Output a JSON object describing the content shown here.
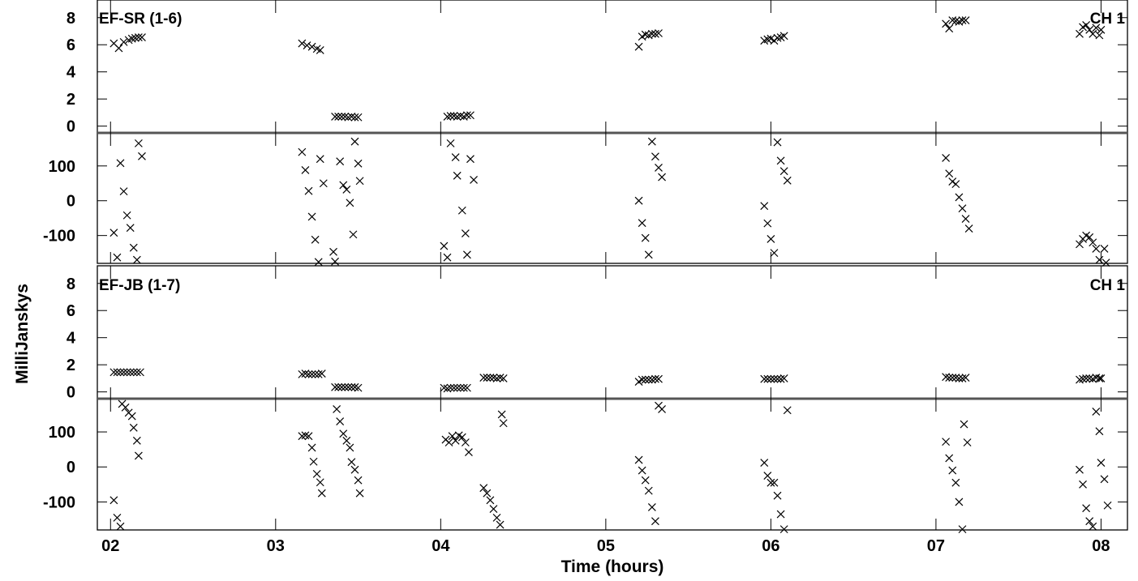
{
  "chart_data": {
    "type": "scatter",
    "xlabel": "Time (hours)",
    "ylabel": "MilliJanskys",
    "x_ticks": [
      "02",
      "03",
      "04",
      "05",
      "06",
      "07",
      "08"
    ],
    "xlim": [
      1.92,
      8.16
    ],
    "panels": [
      {
        "baseline_label": "EF-SR (1-6)",
        "channel_label": "CH 1",
        "amplitude": {
          "ylim": [
            -0.5,
            9.3
          ],
          "y_ticks": [
            8,
            6,
            4,
            2,
            0
          ],
          "points": [
            [
              2.02,
              6.1
            ],
            [
              2.05,
              5.75
            ],
            [
              2.08,
              6.2
            ],
            [
              2.11,
              6.35
            ],
            [
              2.13,
              6.45
            ],
            [
              2.15,
              6.5
            ],
            [
              2.17,
              6.55
            ],
            [
              2.19,
              6.55
            ],
            [
              3.16,
              6.1
            ],
            [
              3.19,
              5.95
            ],
            [
              3.22,
              5.85
            ],
            [
              3.25,
              5.7
            ],
            [
              3.27,
              5.6
            ],
            [
              3.36,
              0.7
            ],
            [
              3.38,
              0.7
            ],
            [
              3.4,
              0.7
            ],
            [
              3.42,
              0.7
            ],
            [
              3.44,
              0.65
            ],
            [
              3.46,
              0.7
            ],
            [
              3.48,
              0.65
            ],
            [
              3.5,
              0.65
            ],
            [
              4.04,
              0.7
            ],
            [
              4.06,
              0.75
            ],
            [
              4.08,
              0.75
            ],
            [
              4.1,
              0.7
            ],
            [
              4.12,
              0.75
            ],
            [
              4.14,
              0.7
            ],
            [
              4.16,
              0.8
            ],
            [
              4.18,
              0.8
            ],
            [
              5.2,
              5.85
            ],
            [
              5.22,
              6.6
            ],
            [
              5.24,
              6.75
            ],
            [
              5.26,
              6.7
            ],
            [
              5.28,
              6.8
            ],
            [
              5.3,
              6.8
            ],
            [
              5.32,
              6.85
            ],
            [
              5.96,
              6.3
            ],
            [
              5.98,
              6.4
            ],
            [
              6.0,
              6.45
            ],
            [
              6.02,
              6.3
            ],
            [
              6.04,
              6.5
            ],
            [
              6.06,
              6.55
            ],
            [
              6.08,
              6.65
            ],
            [
              7.06,
              7.55
            ],
            [
              7.08,
              7.2
            ],
            [
              7.1,
              7.8
            ],
            [
              7.12,
              7.75
            ],
            [
              7.14,
              7.7
            ],
            [
              7.16,
              7.8
            ],
            [
              7.18,
              7.8
            ],
            [
              7.87,
              6.8
            ],
            [
              7.89,
              7.3
            ],
            [
              7.91,
              7.45
            ],
            [
              7.93,
              7.1
            ],
            [
              7.95,
              6.8
            ],
            [
              7.97,
              7.25
            ],
            [
              7.99,
              6.7
            ],
            [
              8.0,
              7.1
            ]
          ]
        },
        "phase": {
          "ylim": [
            -180,
            195
          ],
          "y_ticks": [
            100,
            0,
            -100
          ],
          "points": [
            [
              2.02,
              -92
            ],
            [
              2.04,
              -163
            ],
            [
              2.06,
              108
            ],
            [
              2.08,
              27
            ],
            [
              2.1,
              -42
            ],
            [
              2.12,
              -78
            ],
            [
              2.14,
              -135
            ],
            [
              2.16,
              -170
            ],
            [
              2.17,
              165
            ],
            [
              2.19,
              128
            ],
            [
              3.16,
              140
            ],
            [
              3.18,
              88
            ],
            [
              3.2,
              28
            ],
            [
              3.22,
              -46
            ],
            [
              3.24,
              -112
            ],
            [
              3.26,
              -176
            ],
            [
              3.27,
              120
            ],
            [
              3.29,
              50
            ],
            [
              3.35,
              -147
            ],
            [
              3.36,
              -175
            ],
            [
              3.39,
              113
            ],
            [
              3.41,
              45
            ],
            [
              3.43,
              32
            ],
            [
              3.45,
              -6
            ],
            [
              3.47,
              -97
            ],
            [
              3.48,
              170
            ],
            [
              3.5,
              107
            ],
            [
              3.51,
              57
            ],
            [
              4.02,
              -130
            ],
            [
              4.04,
              -163
            ],
            [
              4.06,
              165
            ],
            [
              4.09,
              125
            ],
            [
              4.1,
              72
            ],
            [
              4.13,
              -28
            ],
            [
              4.15,
              -94
            ],
            [
              4.16,
              -155
            ],
            [
              4.18,
              120
            ],
            [
              4.2,
              60
            ],
            [
              5.2,
              0
            ],
            [
              5.22,
              -64
            ],
            [
              5.24,
              -107
            ],
            [
              5.26,
              -155
            ],
            [
              5.28,
              170
            ],
            [
              5.3,
              127
            ],
            [
              5.32,
              95
            ],
            [
              5.34,
              68
            ],
            [
              5.96,
              -15
            ],
            [
              5.98,
              -65
            ],
            [
              6.0,
              -110
            ],
            [
              6.02,
              -150
            ],
            [
              6.04,
              168
            ],
            [
              6.06,
              115
            ],
            [
              6.08,
              85
            ],
            [
              6.1,
              58
            ],
            [
              7.06,
              123
            ],
            [
              7.08,
              78
            ],
            [
              7.1,
              55
            ],
            [
              7.12,
              48
            ],
            [
              7.14,
              10
            ],
            [
              7.16,
              -22
            ],
            [
              7.18,
              -52
            ],
            [
              7.2,
              -80
            ],
            [
              7.87,
              -125
            ],
            [
              7.89,
              -110
            ],
            [
              7.91,
              -100
            ],
            [
              7.93,
              -105
            ],
            [
              7.95,
              -120
            ],
            [
              7.97,
              -138
            ],
            [
              7.99,
              -170
            ],
            [
              8.02,
              -138
            ],
            [
              8.03,
              -178
            ]
          ]
        }
      },
      {
        "baseline_label": "EF-JB (1-7)",
        "channel_label": "CH 1",
        "amplitude": {
          "ylim": [
            -0.5,
            9.3
          ],
          "y_ticks": [
            8,
            6,
            4,
            2,
            0
          ],
          "points": [
            [
              2.02,
              1.45
            ],
            [
              2.04,
              1.45
            ],
            [
              2.06,
              1.45
            ],
            [
              2.08,
              1.45
            ],
            [
              2.1,
              1.45
            ],
            [
              2.12,
              1.45
            ],
            [
              2.14,
              1.45
            ],
            [
              2.16,
              1.45
            ],
            [
              2.18,
              1.45
            ],
            [
              3.16,
              1.3
            ],
            [
              3.18,
              1.35
            ],
            [
              3.2,
              1.3
            ],
            [
              3.22,
              1.3
            ],
            [
              3.24,
              1.3
            ],
            [
              3.26,
              1.3
            ],
            [
              3.28,
              1.35
            ],
            [
              3.36,
              0.35
            ],
            [
              3.38,
              0.35
            ],
            [
              3.4,
              0.35
            ],
            [
              3.42,
              0.35
            ],
            [
              3.44,
              0.35
            ],
            [
              3.46,
              0.35
            ],
            [
              3.48,
              0.35
            ],
            [
              3.5,
              0.3
            ],
            [
              4.02,
              0.3
            ],
            [
              4.04,
              0.25
            ],
            [
              4.06,
              0.3
            ],
            [
              4.08,
              0.3
            ],
            [
              4.1,
              0.3
            ],
            [
              4.12,
              0.3
            ],
            [
              4.14,
              0.3
            ],
            [
              4.16,
              0.3
            ],
            [
              4.26,
              1.05
            ],
            [
              4.28,
              1.05
            ],
            [
              4.3,
              1.05
            ],
            [
              4.32,
              1.05
            ],
            [
              4.34,
              1.0
            ],
            [
              4.36,
              1.05
            ],
            [
              4.38,
              1.0
            ],
            [
              5.2,
              0.75
            ],
            [
              5.22,
              0.9
            ],
            [
              5.24,
              0.9
            ],
            [
              5.26,
              0.9
            ],
            [
              5.28,
              0.9
            ],
            [
              5.3,
              0.95
            ],
            [
              5.32,
              0.95
            ],
            [
              5.96,
              0.95
            ],
            [
              5.98,
              0.95
            ],
            [
              6.0,
              0.95
            ],
            [
              6.02,
              0.95
            ],
            [
              6.04,
              0.95
            ],
            [
              6.06,
              0.95
            ],
            [
              6.08,
              1.0
            ],
            [
              7.06,
              1.1
            ],
            [
              7.08,
              1.05
            ],
            [
              7.1,
              1.05
            ],
            [
              7.12,
              1.05
            ],
            [
              7.14,
              1.0
            ],
            [
              7.16,
              1.0
            ],
            [
              7.18,
              1.05
            ],
            [
              7.87,
              0.9
            ],
            [
              7.89,
              0.95
            ],
            [
              7.91,
              1.0
            ],
            [
              7.93,
              1.0
            ],
            [
              7.95,
              0.95
            ],
            [
              7.97,
              1.05
            ],
            [
              7.99,
              1.0
            ],
            [
              8.0,
              1.0
            ]
          ]
        },
        "phase": {
          "ylim": [
            -180,
            195
          ],
          "y_ticks": [
            100,
            0,
            -100
          ],
          "points": [
            [
              2.02,
              -95
            ],
            [
              2.04,
              -145
            ],
            [
              2.06,
              -170
            ],
            [
              2.07,
              180
            ],
            [
              2.09,
              170
            ],
            [
              2.11,
              155
            ],
            [
              2.13,
              145
            ],
            [
              2.14,
              112
            ],
            [
              2.16,
              75
            ],
            [
              2.17,
              32
            ],
            [
              3.16,
              88
            ],
            [
              3.18,
              90
            ],
            [
              3.2,
              88
            ],
            [
              3.22,
              55
            ],
            [
              3.23,
              15
            ],
            [
              3.25,
              -20
            ],
            [
              3.27,
              -44
            ],
            [
              3.28,
              -75
            ],
            [
              3.37,
              165
            ],
            [
              3.39,
              130
            ],
            [
              3.41,
              95
            ],
            [
              3.43,
              75
            ],
            [
              3.45,
              55
            ],
            [
              3.46,
              14
            ],
            [
              3.48,
              -8
            ],
            [
              3.5,
              -38
            ],
            [
              3.51,
              -75
            ],
            [
              4.03,
              78
            ],
            [
              4.05,
              70
            ],
            [
              4.07,
              88
            ],
            [
              4.09,
              75
            ],
            [
              4.11,
              90
            ],
            [
              4.13,
              85
            ],
            [
              4.15,
              70
            ],
            [
              4.17,
              42
            ],
            [
              4.26,
              -60
            ],
            [
              4.28,
              -75
            ],
            [
              4.3,
              -95
            ],
            [
              4.32,
              -120
            ],
            [
              4.34,
              -145
            ],
            [
              4.36,
              -165
            ],
            [
              4.37,
              150
            ],
            [
              4.38,
              125
            ],
            [
              5.2,
              20
            ],
            [
              5.22,
              -10
            ],
            [
              5.24,
              -38
            ],
            [
              5.26,
              -68
            ],
            [
              5.28,
              -115
            ],
            [
              5.3,
              -155
            ],
            [
              5.32,
              175
            ],
            [
              5.34,
              165
            ],
            [
              5.96,
              12
            ],
            [
              5.98,
              -25
            ],
            [
              6.0,
              -45
            ],
            [
              6.02,
              -45
            ],
            [
              6.04,
              -82
            ],
            [
              6.06,
              -135
            ],
            [
              6.08,
              -178
            ],
            [
              6.1,
              162
            ],
            [
              7.06,
              72
            ],
            [
              7.08,
              25
            ],
            [
              7.1,
              -10
            ],
            [
              7.12,
              -45
            ],
            [
              7.14,
              -100
            ],
            [
              7.16,
              -178
            ],
            [
              7.17,
              122
            ],
            [
              7.19,
              70
            ],
            [
              7.87,
              -8
            ],
            [
              7.89,
              -50
            ],
            [
              7.91,
              -118
            ],
            [
              7.93,
              -155
            ],
            [
              7.95,
              -170
            ],
            [
              7.97,
              158
            ],
            [
              7.99,
              102
            ],
            [
              8.0,
              12
            ],
            [
              8.02,
              -35
            ],
            [
              8.04,
              -110
            ]
          ]
        }
      }
    ]
  }
}
